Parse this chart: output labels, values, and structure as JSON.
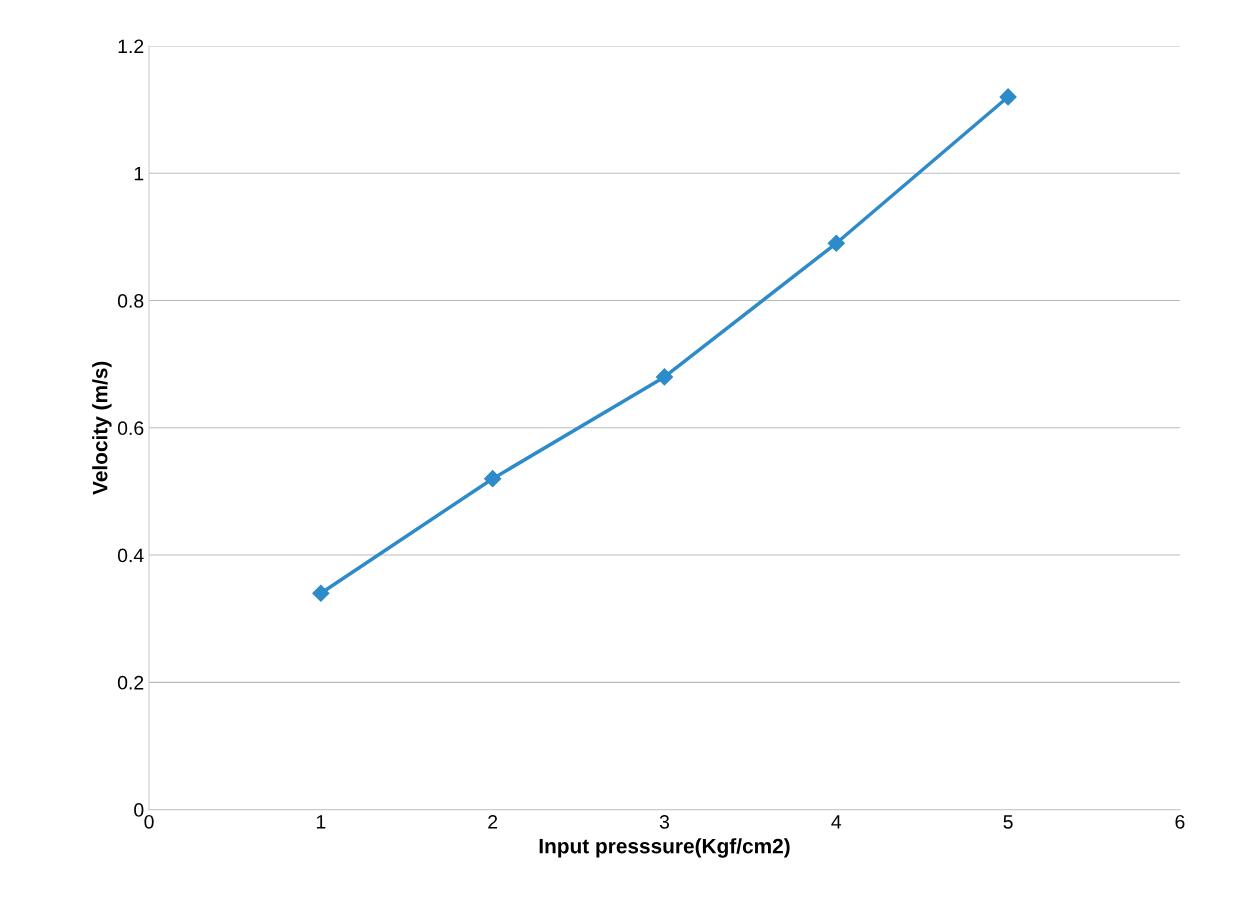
{
  "chart_data": {
    "type": "line",
    "xlabel": "Input presssure(Kgf/cm2)",
    "ylabel": "Velocity (m/s)",
    "x": [
      1,
      2,
      3,
      4,
      5
    ],
    "series": [
      {
        "color": "#2e8bc9",
        "values": [
          0.34,
          0.52,
          0.68,
          0.89,
          1.12
        ]
      }
    ],
    "xlim": [
      0,
      6
    ],
    "xticks": [
      0,
      1,
      2,
      3,
      4,
      5,
      6
    ],
    "ylim": [
      0,
      1.2
    ],
    "yticks": [
      {
        "value": 0,
        "label": "0"
      },
      {
        "value": 0.2,
        "label": "0.2"
      },
      {
        "value": 0.4,
        "label": "0.4"
      },
      {
        "value": 0.6,
        "label": "0.6"
      },
      {
        "value": 0.8,
        "label": "0.8"
      },
      {
        "value": 1.0,
        "label": "1"
      },
      {
        "value": 1.2,
        "label": "1.2"
      }
    ],
    "grid": "y",
    "marker": "diamond",
    "line_style": "solid"
  }
}
